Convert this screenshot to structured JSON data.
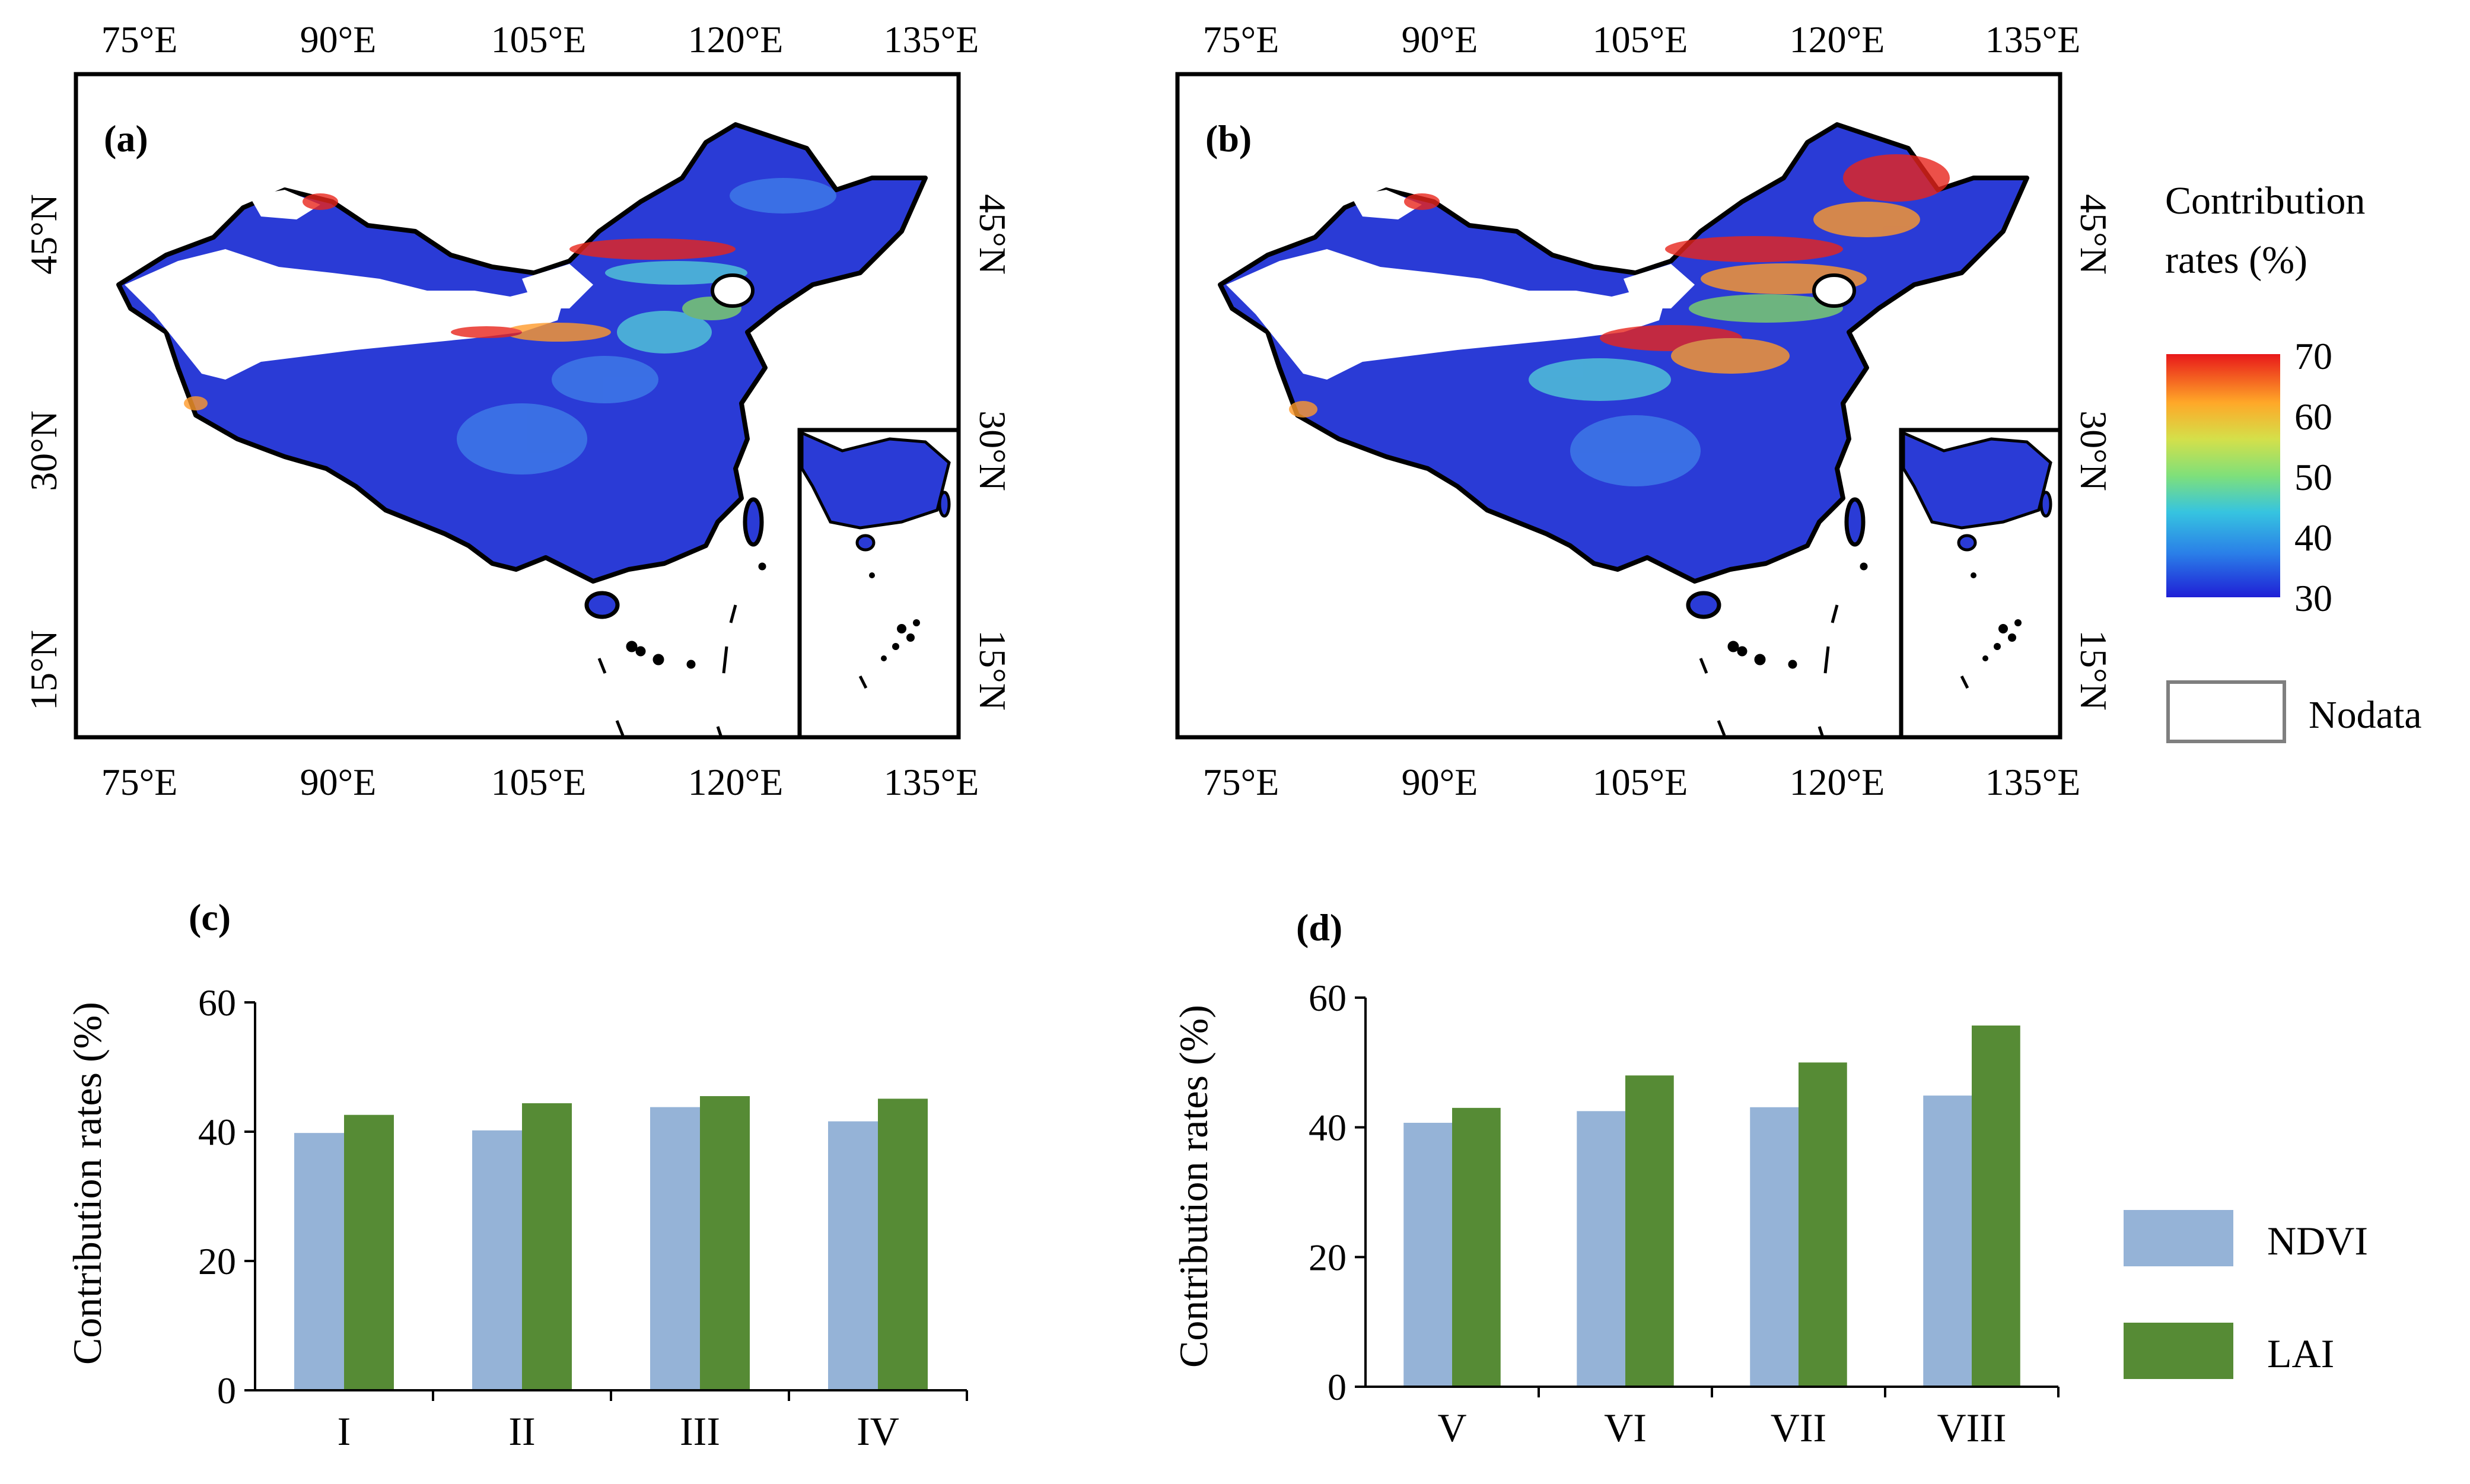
{
  "colors": {
    "ndvi": "#95b3d7",
    "lai": "#568b35",
    "axis": "#000000",
    "nodata_border": "#7f7f7f",
    "map_base": "#2a3bd6",
    "map_light": "#3e7de8",
    "map_cyan": "#53c9d8",
    "map_green": "#7ed36a",
    "map_orange": "#ff9a2a",
    "map_red": "#e8251c"
  },
  "maps": [
    {
      "panel_label": "(a)",
      "lon_ticks": [
        "75°E",
        "90°E",
        "105°E",
        "120°E",
        "135°E"
      ],
      "lat_ticks": [
        "45°N",
        "30°N",
        "15°N"
      ]
    },
    {
      "panel_label": "(b)",
      "lon_ticks": [
        "75°E",
        "90°E",
        "105°E",
        "120°E",
        "135°E"
      ],
      "lat_ticks": [
        "45°N",
        "30°N",
        "15°N"
      ]
    }
  ],
  "map_legend": {
    "title_line1": "Contribution",
    "title_line2": "rates (%)",
    "colorbar_ticks": [
      "70",
      "60",
      "50",
      "40",
      "30"
    ],
    "colorbar_range": [
      30,
      70
    ],
    "nodata_label": "Nodata"
  },
  "bar_legend": {
    "items": [
      "NDVI",
      "LAI"
    ]
  },
  "chart_data": [
    {
      "type": "bar",
      "panel_label": "(c)",
      "title": "",
      "xlabel": "",
      "ylabel": "Contribution rates (%)",
      "ylim": [
        0,
        60
      ],
      "yticks": [
        "0",
        "20",
        "40",
        "60"
      ],
      "categories": [
        "I",
        "II",
        "III",
        "IV"
      ],
      "series": [
        {
          "name": "NDVI",
          "values": [
            39.8,
            40.2,
            43.8,
            41.6
          ]
        },
        {
          "name": "LAI",
          "values": [
            42.6,
            44.4,
            45.5,
            45.1
          ]
        }
      ]
    },
    {
      "type": "bar",
      "panel_label": "(d)",
      "title": "",
      "xlabel": "",
      "ylabel": "Contribution rates (%)",
      "ylim": [
        0,
        60
      ],
      "yticks": [
        "0",
        "20",
        "40",
        "60"
      ],
      "categories": [
        "V",
        "VI",
        "VII",
        "VIII"
      ],
      "series": [
        {
          "name": "NDVI",
          "values": [
            40.7,
            42.5,
            43.1,
            44.9
          ]
        },
        {
          "name": "LAI",
          "values": [
            43.0,
            48.0,
            50.0,
            55.7
          ]
        }
      ]
    }
  ]
}
